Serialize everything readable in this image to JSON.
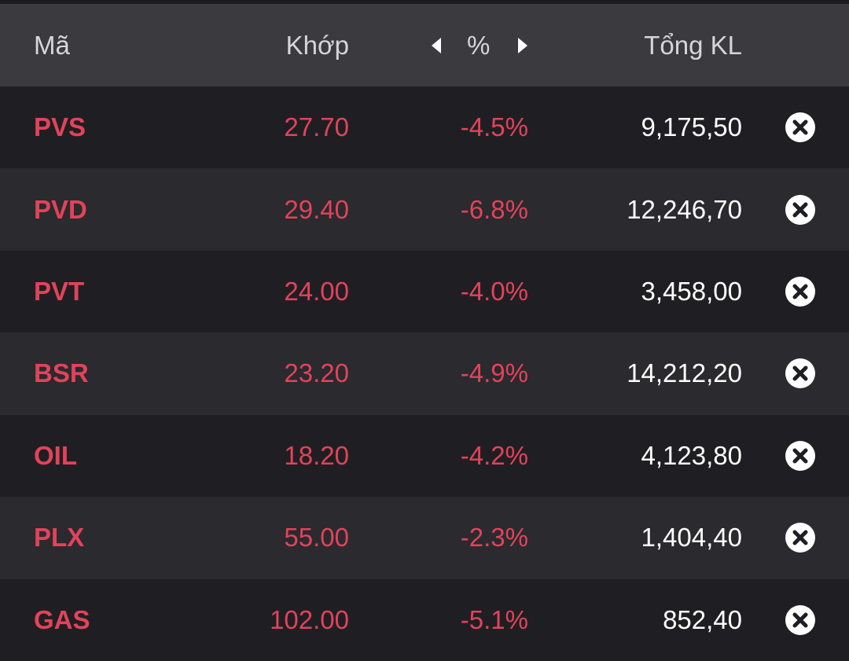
{
  "table": {
    "header": [
      "Mã",
      "Khớp",
      "%",
      "Tổng KL"
    ],
    "rows": [
      [
        "PVS",
        "27.70",
        "-4.5%",
        "9,175,50"
      ],
      [
        "PVD",
        "29.40",
        "-6.8%",
        "12,246,70"
      ],
      [
        "PVT",
        "24.00",
        "-4.0%",
        "3,458,00"
      ],
      [
        "BSR",
        "23.20",
        "-4.9%",
        "14,212,20"
      ],
      [
        "OIL",
        "18.20",
        "-4.2%",
        "4,123,80"
      ],
      [
        "PLX",
        "55.00",
        "-2.3%",
        "1,404,40"
      ],
      [
        "GAS",
        "102.00",
        "-5.1%",
        "852,40"
      ]
    ]
  }
}
